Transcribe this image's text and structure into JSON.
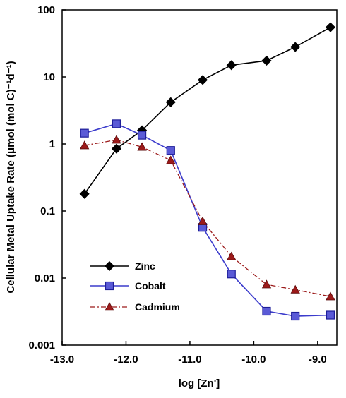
{
  "chart_data": {
    "type": "line",
    "xlabel": "log [Zn']",
    "ylabel": "Cellular Metal Uptake Rate (μmol (mol C)⁻¹d⁻¹)",
    "xlim": [
      -13.0,
      -8.7
    ],
    "ylim": [
      0.001,
      100
    ],
    "yscale": "log",
    "grid": false,
    "legend_position": "bottom-left",
    "x_ticks": [
      "-13.0",
      "-12.0",
      "-11.0",
      "-10.0",
      "-9.0"
    ],
    "y_ticks": [
      "0.001",
      "0.01",
      "0.1",
      "1",
      "10",
      "100"
    ],
    "series": [
      {
        "name": "Zinc",
        "color": "#000000",
        "marker": "diamond",
        "line": "solid",
        "x": [
          -12.65,
          -12.15,
          -11.75,
          -11.3,
          -10.8,
          -10.35,
          -9.8,
          -9.35,
          -8.8
        ],
        "y": [
          0.18,
          0.85,
          1.6,
          4.2,
          9.0,
          15.0,
          17.5,
          28.0,
          55.0
        ]
      },
      {
        "name": "Cobalt",
        "color": "#3c3ccc",
        "marker": "square",
        "line": "solid",
        "x": [
          -12.65,
          -12.15,
          -11.75,
          -11.3,
          -10.8,
          -10.35,
          -9.8,
          -9.35,
          -8.8
        ],
        "y": [
          1.45,
          2.0,
          1.35,
          0.8,
          0.057,
          0.0115,
          0.0032,
          0.0027,
          0.0028
        ]
      },
      {
        "name": "Cadmium",
        "color": "#9c1a1a",
        "marker": "triangle",
        "line": "dash-dot",
        "x": [
          -12.65,
          -12.15,
          -11.75,
          -11.3,
          -10.8,
          -10.35,
          -9.8,
          -9.35,
          -8.8
        ],
        "y": [
          0.95,
          1.15,
          0.9,
          0.57,
          0.07,
          0.021,
          0.008,
          0.0067,
          0.0053
        ]
      }
    ]
  }
}
